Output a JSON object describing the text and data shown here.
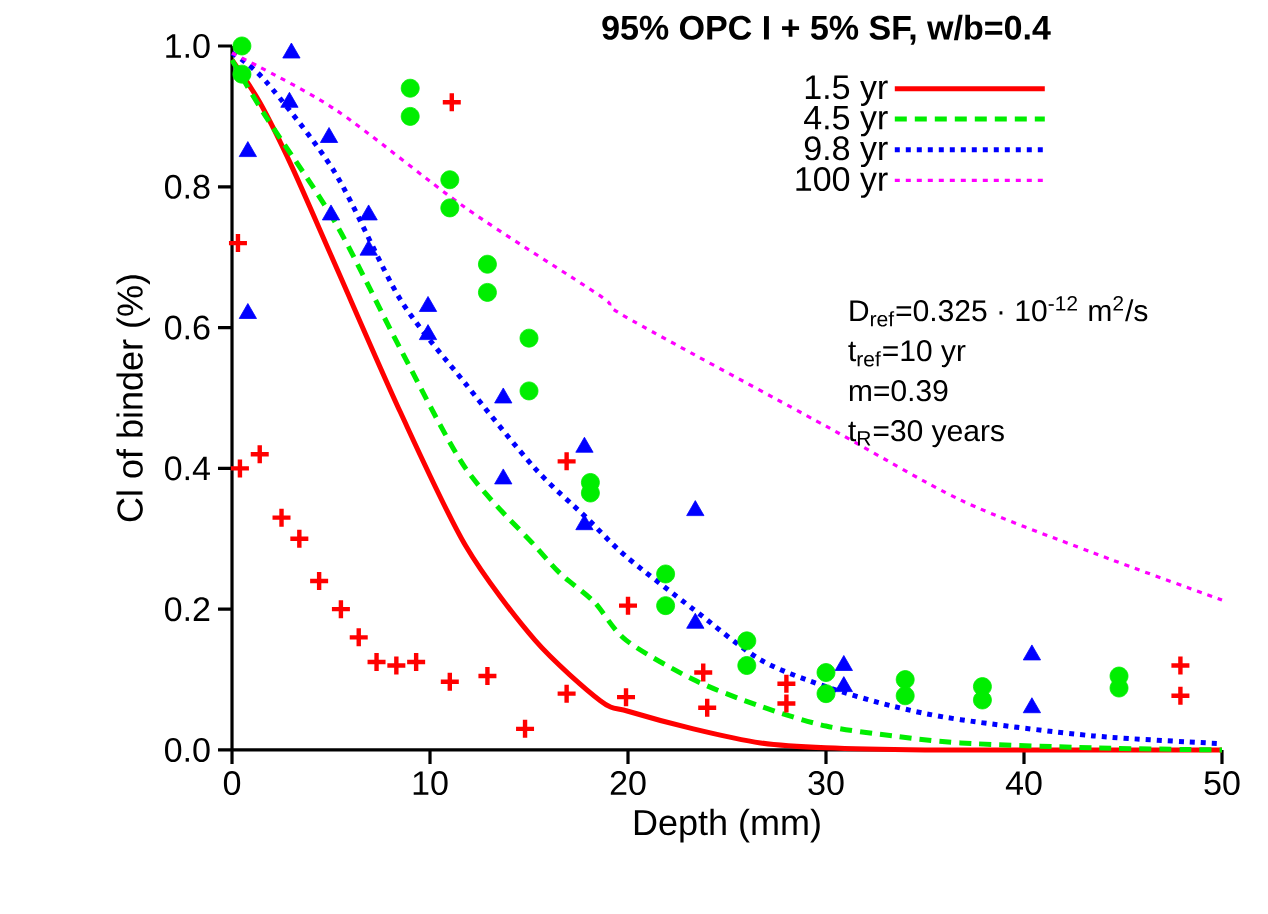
{
  "chart_data": {
    "type": "line",
    "title": "95% OPC I + 5% SF, w/b=0.4",
    "xlabel": "Depth (mm)",
    "ylabel": "Cl of binder (%)",
    "xlim": [
      0,
      50
    ],
    "ylim": [
      0,
      1.0
    ],
    "xticks": [
      0,
      10,
      20,
      30,
      40,
      50
    ],
    "yticks": [
      {
        "value": 0,
        "label": "0.0"
      },
      {
        "value": 0.2,
        "label": "0.2"
      },
      {
        "value": 0.4,
        "label": "0.4"
      },
      {
        "value": 0.6,
        "label": "0.6"
      },
      {
        "value": 0.8,
        "label": "0.8"
      },
      {
        "value": 1.0,
        "label": "1.0"
      }
    ],
    "legend": "top right",
    "annotations": [
      "D$_{ref}$=0.325 · 10$^{-12}$ m$^{2}$/s",
      "t$_{ref}$=10 yr",
      "m=0.39",
      "t$_{R}$=30 years"
    ],
    "series": [
      {
        "name": "1.5 yr",
        "color": "#ff0000",
        "line_style": "solid",
        "x": [
          0,
          1.4,
          3,
          5.2,
          8.5,
          11.8,
          15.3,
          18.6,
          20,
          23.3,
          26.7,
          30,
          35,
          40,
          50
        ],
        "values": [
          0.98,
          0.92,
          0.83,
          0.69,
          0.48,
          0.29,
          0.156,
          0.07,
          0.055,
          0.03,
          0.01,
          0.003,
          0,
          0,
          0
        ]
      },
      {
        "name": "4.5 yr",
        "color": "#00ee00",
        "line_style": "dashed",
        "x": [
          0,
          1.7,
          5.2,
          8.5,
          11.8,
          15.3,
          16.6,
          18.3,
          19.9,
          23.3,
          26.7,
          30,
          33.4,
          36.8,
          43.5,
          50
        ],
        "values": [
          0.98,
          0.9,
          0.75,
          0.57,
          0.4,
          0.29,
          0.25,
          0.21,
          0.156,
          0.1,
          0.062,
          0.034,
          0.02,
          0.01,
          0.003,
          0
        ]
      },
      {
        "name": "9.8 yr",
        "color": "#0000ff",
        "line_style": "dotted",
        "x": [
          0,
          1.7,
          5.2,
          8.5,
          11.8,
          15.3,
          17.9,
          19.9,
          23.3,
          26.7,
          30,
          33.4,
          36.8,
          43.5,
          50
        ],
        "values": [
          0.99,
          0.95,
          0.82,
          0.64,
          0.52,
          0.4,
          0.33,
          0.275,
          0.2,
          0.128,
          0.09,
          0.062,
          0.043,
          0.02,
          0.009
        ]
      },
      {
        "name": "100 yr",
        "color": "#ff00ff",
        "line_style": "dotted",
        "x": [
          0,
          5.2,
          11.8,
          18.6,
          19.9,
          30,
          36.8,
          43.5,
          50
        ],
        "values": [
          0.99,
          0.91,
          0.77,
          0.645,
          0.615,
          0.46,
          0.355,
          0.28,
          0.213
        ]
      },
      {
        "type": "scatter",
        "color": "#ff0000",
        "marker": "cross",
        "x": [
          0.3,
          0.4,
          1.4,
          2.5,
          3.4,
          4.4,
          5.5,
          6.4,
          7.3,
          8.3,
          9.3,
          11,
          12.9,
          14.8,
          16.9,
          19.9,
          11.1,
          16.9,
          20.0,
          23.8,
          24,
          28,
          28,
          38,
          47.9,
          47.9
        ],
        "values": [
          0.72,
          0.4,
          0.42,
          0.33,
          0.3,
          0.24,
          0.2,
          0.16,
          0.125,
          0.12,
          0.125,
          0.097,
          0.105,
          0.03,
          0.08,
          0.075,
          0.92,
          0.41,
          0.205,
          0.11,
          0.06,
          0.094,
          0.066,
          null,
          0.12,
          0.077
        ]
      },
      {
        "type": "scatter",
        "color": "#00ee00",
        "marker": "circle",
        "x": [
          0.5,
          0.5,
          9.0,
          9.0,
          11,
          11,
          12.9,
          12.9,
          15,
          15,
          18.1,
          18.1,
          21.9,
          21.9,
          26,
          26,
          30,
          30,
          34,
          34,
          37.9,
          37.9,
          44.8,
          44.8
        ],
        "values": [
          1.0,
          0.96,
          0.94,
          0.9,
          0.81,
          0.77,
          0.69,
          0.65,
          0.585,
          0.51,
          0.38,
          0.365,
          0.25,
          0.205,
          0.155,
          0.12,
          0.11,
          0.08,
          0.1,
          0.077,
          0.09,
          0.071,
          0.105,
          0.088
        ]
      },
      {
        "type": "scatter",
        "color": "#0000ff",
        "marker": "triangle",
        "x": [
          3.0,
          0.8,
          2.9,
          0.8,
          4.9,
          5.0,
          6.9,
          6.9,
          9.9,
          9.9,
          13.7,
          13.7,
          17.8,
          17.8,
          23.4,
          23.4,
          30.9,
          30.9,
          40.4,
          40.4
        ],
        "values": [
          0.99,
          0.85,
          0.92,
          0.62,
          0.87,
          0.76,
          0.76,
          0.71,
          0.63,
          0.59,
          0.5,
          0.385,
          0.43,
          0.32,
          0.34,
          0.18,
          0.12,
          0.09,
          0.135,
          0.06
        ]
      }
    ]
  }
}
